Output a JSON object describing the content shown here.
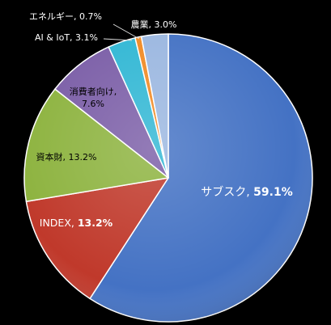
{
  "chart_data": {
    "type": "pie",
    "title": "",
    "start_angle_deg": 0,
    "direction": "clockwise",
    "slices": [
      {
        "label": "サブスク",
        "value": 59.1,
        "value_label": "59.1%",
        "color": "#4472C4",
        "label_color": "#ffffff"
      },
      {
        "label": "INDEX",
        "value": 13.2,
        "value_label": "13.2%",
        "color": "#C0392B",
        "label_color": "#ffffff"
      },
      {
        "label": "資本財",
        "value": 13.2,
        "value_label": "13.2%",
        "color": "#8DB33F",
        "label_color": "#000000"
      },
      {
        "label": "消費者向け",
        "value": 7.6,
        "value_label": "7.6%",
        "color": "#7B5EA7",
        "label_color": "#000000"
      },
      {
        "label": "AI & IoT",
        "value": 3.1,
        "value_label": "3.1%",
        "color": "#31B7D4",
        "label_color": "#ffffff"
      },
      {
        "label": "エネルギー",
        "value": 0.7,
        "value_label": "0.7%",
        "color": "#F08A24",
        "label_color": "#ffffff"
      },
      {
        "label": "農業",
        "value": 3.0,
        "value_label": "3.0%",
        "color": "#9BB7E0",
        "label_color": "#ffffff"
      }
    ]
  }
}
